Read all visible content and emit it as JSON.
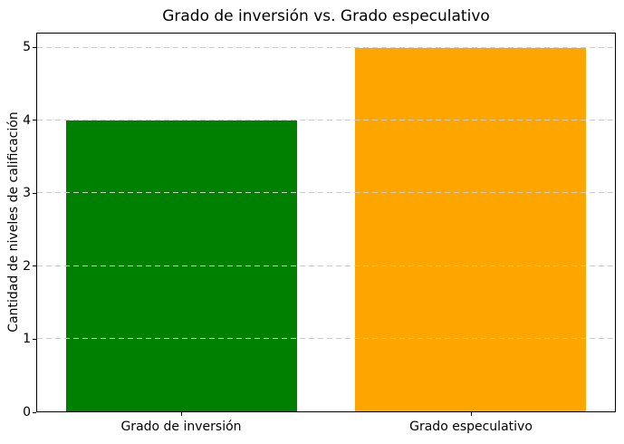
{
  "chart_data": {
    "type": "bar",
    "title": "Grado de inversión vs. Grado especulativo",
    "xlabel": "",
    "ylabel": "Cantidad de niveles de calificación",
    "categories": [
      "Grado de inversión",
      "Grado especulativo"
    ],
    "values": [
      4,
      5
    ],
    "bar_colors": [
      "#008000",
      "#FFA500"
    ],
    "yticks": [
      "0",
      "1",
      "2",
      "3",
      "4",
      "5"
    ],
    "ylim": [
      0,
      5.2
    ],
    "bar_width_fraction": 0.8,
    "grid": "horizontal dashed, drawn above bars",
    "grid_color": "#cccccc",
    "spine_color": "#000000",
    "background_color": "#ffffff",
    "legend": "none"
  }
}
